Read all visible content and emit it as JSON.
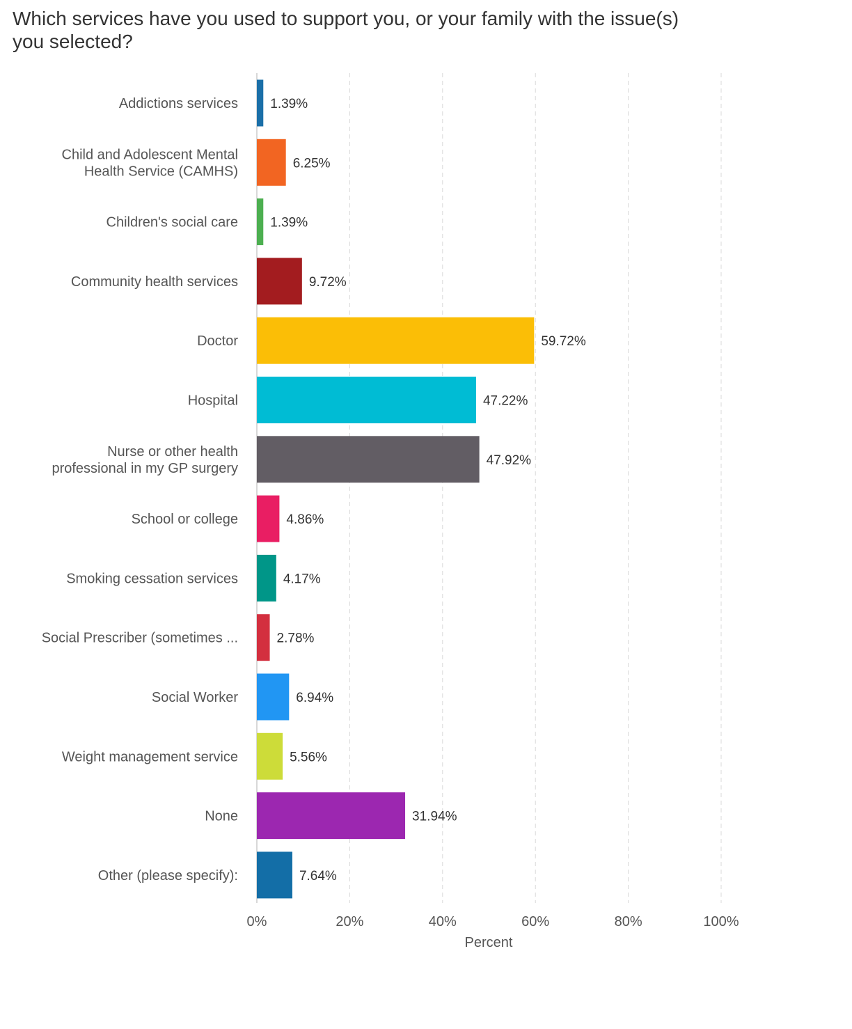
{
  "title": "Which services have you used to support you, or your family with the issue(s) you selected?",
  "chart_data": {
    "type": "bar",
    "orientation": "horizontal",
    "title": "Which services have you used to support you, or your family with the issue(s) you selected?",
    "xlabel": "Percent",
    "ylabel": "",
    "xlim": [
      0,
      100
    ],
    "x_ticks": [
      "0%",
      "20%",
      "40%",
      "60%",
      "80%",
      "100%"
    ],
    "grid": "vertical dashed",
    "categories": [
      [
        "Addictions services"
      ],
      [
        "Child and Adolescent Mental",
        "Health Service (CAMHS)"
      ],
      [
        "Children's social care"
      ],
      [
        "Community health services"
      ],
      [
        "Doctor"
      ],
      [
        "Hospital"
      ],
      [
        "Nurse or other health",
        "professional in my GP surgery"
      ],
      [
        "School or college"
      ],
      [
        "Smoking cessation services"
      ],
      [
        "Social Prescriber (sometimes ..."
      ],
      [
        "Social Worker"
      ],
      [
        "Weight management service"
      ],
      [
        "None"
      ],
      [
        "Other (please specify):"
      ]
    ],
    "values": [
      1.39,
      6.25,
      1.39,
      9.72,
      59.72,
      47.22,
      47.92,
      4.86,
      4.17,
      2.78,
      6.94,
      5.56,
      31.94,
      7.64
    ],
    "value_labels": [
      "1.39%",
      "6.25%",
      "1.39%",
      "9.72%",
      "59.72%",
      "47.22%",
      "47.92%",
      "4.86%",
      "4.17%",
      "2.78%",
      "6.94%",
      "5.56%",
      "31.94%",
      "7.64%"
    ],
    "colors": [
      "#1a6fa8",
      "#f26522",
      "#4caf50",
      "#a31c1f",
      "#fbbe06",
      "#00bcd4",
      "#625d64",
      "#e91e63",
      "#009688",
      "#d32f3f",
      "#2196f3",
      "#cddc39",
      "#9c27b0",
      "#136ea7"
    ]
  }
}
